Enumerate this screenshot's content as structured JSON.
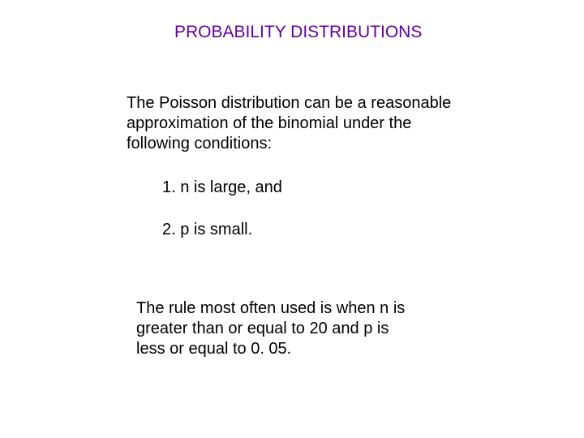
{
  "heading": {
    "text": "PROBABILITY DISTRIBUTIONS",
    "color": "#660099",
    "fontsize": 21
  },
  "intro": {
    "text": "The Poisson distribution can be a reasonable approximation of the binomial under the following conditions:",
    "color": "#000000",
    "fontsize": 20
  },
  "items": [
    {
      "text": "1. n is large, and"
    },
    {
      "text": "2. p is small."
    }
  ],
  "rule": {
    "text": "The rule most often used is when n is greater than or equal to 20 and p is less or equal to 0. 05.",
    "color": "#000000",
    "fontsize": 20
  },
  "background_color": "#ffffff"
}
